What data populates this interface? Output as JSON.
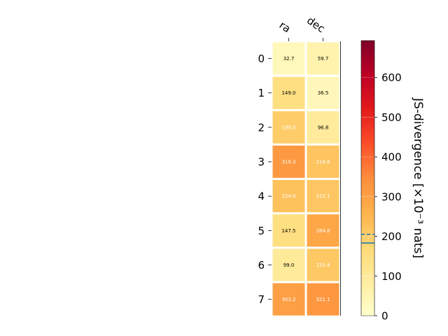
{
  "chart_data": {
    "type": "heatmap",
    "columns": [
      "ra",
      "dec"
    ],
    "rows": [
      "0",
      "1",
      "2",
      "3",
      "4",
      "5",
      "6",
      "7"
    ],
    "values": [
      [
        32.7,
        59.7
      ],
      [
        149.0,
        36.5
      ],
      [
        199.5,
        96.8
      ],
      [
        319.3,
        218.8
      ],
      [
        224.0,
        215.1
      ],
      [
        147.5,
        284.6
      ],
      [
        99.0,
        210.4
      ],
      [
        303.2,
        321.1
      ]
    ],
    "value_labels": [
      [
        "32.7",
        "59.7"
      ],
      [
        "149.0",
        "36.5"
      ],
      [
        "199.5",
        "96.8"
      ],
      [
        "319.3",
        "218.8"
      ],
      [
        "224.0",
        "215.1"
      ],
      [
        "147.5",
        "284.6"
      ],
      [
        "99.0",
        "210.4"
      ],
      [
        "303.2",
        "321.1"
      ]
    ],
    "colorbar": {
      "label": "JS-divergence [×10⁻³ nats]",
      "range": [
        0,
        693
      ],
      "ticks": [
        0,
        100,
        200,
        300,
        400,
        500,
        600
      ],
      "tick_labels": [
        "0",
        "100",
        "200",
        "300",
        "400",
        "500",
        "600"
      ],
      "colormap": "YlOrRd",
      "markers": [
        {
          "value": 205,
          "style": "dashed"
        },
        {
          "value": 183,
          "style": "solid"
        }
      ],
      "marker_color": "#1f77b4"
    }
  }
}
